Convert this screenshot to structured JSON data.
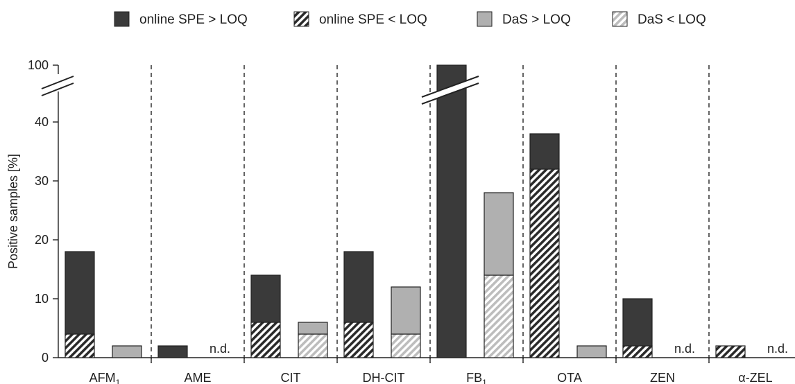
{
  "colors": {
    "online_above": "#3a3a3a",
    "online_below_stripe": "#2a2a2a",
    "das_above": "#b0b0b0",
    "das_below_stripe": "#bdbdbd",
    "axis": "#222222"
  },
  "chart_data": {
    "type": "bar",
    "stacked": true,
    "ylabel": "Positive samples [%]",
    "yticks": [
      0,
      10,
      20,
      30,
      40,
      100
    ],
    "ylim": [
      0,
      100
    ],
    "axis_break": "between 40 and 100",
    "legend_position": "top",
    "legend": [
      {
        "key": "online_above",
        "label": "online SPE > LOQ"
      },
      {
        "key": "online_below",
        "label": "online SPE < LOQ"
      },
      {
        "key": "das_above",
        "label": "DaS > LOQ"
      },
      {
        "key": "das_below",
        "label": "DaS < LOQ"
      }
    ],
    "groups": [
      {
        "label": "AFM",
        "label_sub": "1",
        "online": {
          "below": 4,
          "above": 14
        },
        "das": {
          "below": 0,
          "above": 2
        },
        "das_nd": false
      },
      {
        "label": "AME",
        "label_sub": "",
        "online": {
          "below": 0,
          "above": 2
        },
        "das": null,
        "das_nd": true
      },
      {
        "label": "CIT",
        "label_sub": "",
        "online": {
          "below": 6,
          "above": 8
        },
        "das": {
          "below": 4,
          "above": 2
        },
        "das_nd": false
      },
      {
        "label": "DH-CIT",
        "label_sub": "",
        "online": {
          "below": 6,
          "above": 12
        },
        "das": {
          "below": 4,
          "above": 8
        },
        "das_nd": false
      },
      {
        "label": "FB",
        "label_sub": "1",
        "online": {
          "below": 0,
          "above": 100
        },
        "das": {
          "below": 14,
          "above": 14
        },
        "das_nd": false
      },
      {
        "label": "OTA",
        "label_sub": "",
        "online": {
          "below": 32,
          "above": 6
        },
        "das": {
          "below": 0,
          "above": 2
        },
        "das_nd": false
      },
      {
        "label": "ZEN",
        "label_sub": "",
        "online": {
          "below": 2,
          "above": 8
        },
        "das": null,
        "das_nd": true
      },
      {
        "label": "α-ZEL",
        "label_sub": "",
        "online": {
          "below": 2,
          "above": 0
        },
        "das": null,
        "das_nd": true
      }
    ],
    "nd_label": "n.d."
  }
}
